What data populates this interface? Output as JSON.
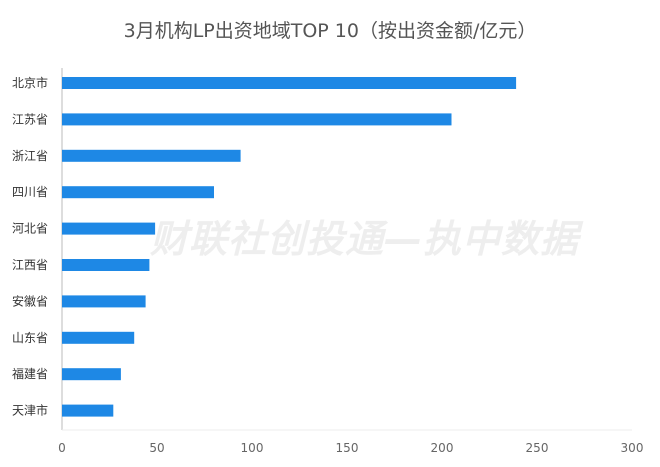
{
  "chart_data": {
    "type": "bar",
    "orientation": "horizontal",
    "title": "3月机构LP出资地域TOP 10（按出资金额/亿元）",
    "categories": [
      "北京市",
      "江苏省",
      "浙江省",
      "四川省",
      "河北省",
      "江西省",
      "安徽省",
      "山东省",
      "福建省",
      "天津市"
    ],
    "values": [
      239,
      205,
      94,
      80,
      49,
      46,
      44,
      38,
      31,
      27
    ],
    "xlim": [
      0,
      300
    ],
    "xticks": [
      "0",
      "50",
      "100",
      "150",
      "200",
      "250",
      "300"
    ],
    "grid": false,
    "bar_color": "#1E88E5",
    "axis_color": "#bbbbbb"
  },
  "watermark": "财联社创投通—执中数据"
}
